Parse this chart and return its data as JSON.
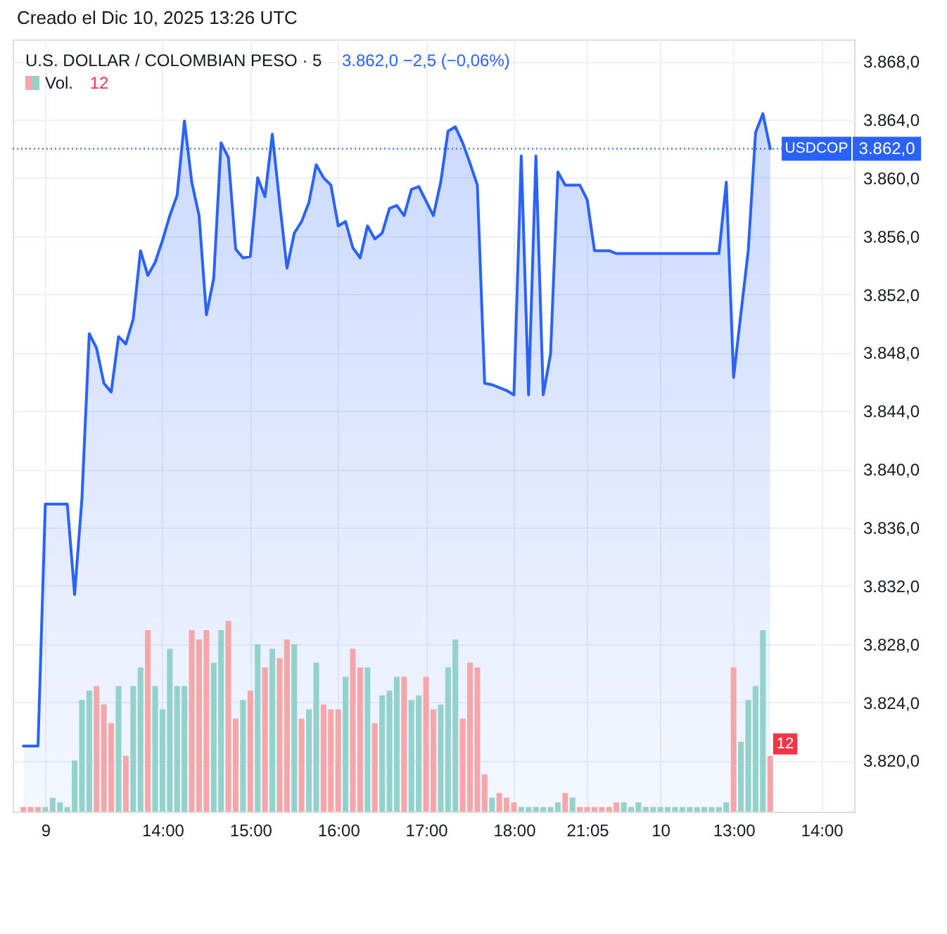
{
  "chart_data": {
    "type": "area",
    "title": "U.S. DOLLAR / COLOMBIAN PESO · 5",
    "subtitle": "3.862,0 −2,5 (−0,06%)",
    "annotations": [
      "Creado el Dic 10, 2025 13:26 UTC"
    ],
    "categories": [
      null,
      null,
      null,
      "9",
      null,
      null,
      null,
      null,
      null,
      null,
      null,
      null,
      null,
      null,
      null,
      null,
      null,
      null,
      null,
      "14:00",
      null,
      null,
      null,
      null,
      null,
      null,
      null,
      null,
      null,
      null,
      null,
      "15:00",
      null,
      null,
      null,
      null,
      null,
      null,
      null,
      null,
      null,
      null,
      null,
      "16:00",
      null,
      null,
      null,
      null,
      null,
      null,
      null,
      null,
      null,
      null,
      null,
      "17:00",
      null,
      null,
      null,
      null,
      null,
      null,
      null,
      null,
      null,
      null,
      null,
      "18:00",
      null,
      null,
      null,
      null,
      null,
      null,
      null,
      null,
      null,
      "21:05",
      null,
      null,
      null,
      null,
      null,
      null,
      null,
      null,
      null,
      "10",
      null,
      null,
      null,
      null,
      null,
      null,
      null,
      null,
      null,
      "13:00",
      null,
      null,
      null,
      null,
      null,
      null,
      null,
      null,
      null,
      null,
      null,
      "14:00",
      null,
      null,
      null
    ],
    "series": [
      {
        "name": "USDCOP",
        "color": "#2962ff",
        "values": [
          3821.0,
          3821.0,
          3821.0,
          3837.6,
          3837.6,
          3837.6,
          3837.6,
          3831.4,
          3838.0,
          3849.3,
          3848.3,
          3845.9,
          3845.3,
          3849.1,
          3848.6,
          3850.3,
          3855.0,
          3853.3,
          3854.2,
          3855.7,
          3857.4,
          3858.8,
          3863.9,
          3859.7,
          3857.4,
          3850.6,
          3853.1,
          3862.4,
          3861.4,
          3855.1,
          3854.5,
          3854.6,
          3860.0,
          3858.7,
          3863.0,
          3858.3,
          3853.8,
          3856.2,
          3857.0,
          3858.3,
          3860.9,
          3860.0,
          3859.5,
          3856.7,
          3857.0,
          3855.2,
          3854.5,
          3856.7,
          3855.8,
          3856.2,
          3857.9,
          3858.1,
          3857.4,
          3859.2,
          3859.4,
          3858.4,
          3857.4,
          3859.7,
          3863.2,
          3863.5,
          3862.4,
          3861.0,
          3859.5,
          3845.9,
          3845.8,
          3845.6,
          3845.4,
          3845.1,
          3861.5,
          3845.1,
          3861.5,
          3845.1,
          3847.9,
          3860.4,
          3859.5,
          3859.5,
          3859.5,
          3858.5,
          3855.0,
          3855.0,
          3855.0,
          3854.8,
          3854.8,
          3854.8,
          3854.8,
          3854.8,
          3854.8,
          3854.8,
          3854.8,
          3854.8,
          3854.8,
          3854.8,
          3854.8,
          3854.8,
          3854.8,
          3854.8,
          3859.7,
          3846.3,
          3850.7,
          3855.0,
          3863.1,
          3864.4,
          3862.0,
          null,
          null,
          null,
          null,
          null,
          null,
          null,
          null,
          null,
          null
        ]
      },
      {
        "name": "Vol.",
        "type": "bar",
        "axis": "y2",
        "values": [
          1,
          1,
          1,
          1,
          3,
          2,
          1,
          11,
          24,
          26,
          27,
          23,
          19,
          27,
          12,
          27,
          31,
          39,
          27,
          22,
          35,
          27,
          27,
          39,
          37,
          39,
          32,
          39,
          41,
          20,
          24,
          26,
          36,
          31,
          35,
          33,
          37,
          36,
          20,
          22,
          32,
          23,
          22,
          22,
          29,
          35,
          31,
          31,
          19,
          25,
          26,
          29,
          29,
          24,
          25,
          29,
          22,
          23,
          31,
          37,
          20,
          32,
          31,
          8,
          3,
          4,
          3,
          2,
          1,
          1,
          1,
          1,
          1,
          2,
          4,
          3,
          1,
          1,
          1,
          1,
          1,
          2,
          2,
          1,
          2,
          1,
          1,
          1,
          1,
          1,
          1,
          1,
          1,
          1,
          1,
          1,
          2,
          31,
          15,
          24,
          27,
          39,
          12,
          null,
          null,
          null,
          null,
          null,
          null,
          null,
          null,
          null,
          null
        ],
        "colors": [
          "#f5a6a8",
          "#f5a6a8",
          "#f5a6a8",
          "#92d2ca",
          "#92d2ca",
          "#92d2ca",
          "#92d2ca",
          "#92d2ca",
          "#92d2ca",
          "#92d2ca",
          "#f5a6a8",
          "#f5a6a8",
          "#f5a6a8",
          "#92d2ca",
          "#f5a6a8",
          "#92d2ca",
          "#92d2ca",
          "#f5a6a8",
          "#92d2ca",
          "#92d2ca",
          "#92d2ca",
          "#92d2ca",
          "#92d2ca",
          "#f5a6a8",
          "#f5a6a8",
          "#f5a6a8",
          "#92d2ca",
          "#92d2ca",
          "#f5a6a8",
          "#f5a6a8",
          "#92d2ca",
          "#f5a6a8",
          "#92d2ca",
          "#f5a6a8",
          "#92d2ca",
          "#f5a6a8",
          "#f5a6a8",
          "#92d2ca",
          "#f5a6a8",
          "#92d2ca",
          "#92d2ca",
          "#f5a6a8",
          "#f5a6a8",
          "#f5a6a8",
          "#92d2ca",
          "#f5a6a8",
          "#f5a6a8",
          "#92d2ca",
          "#f5a6a8",
          "#92d2ca",
          "#92d2ca",
          "#92d2ca",
          "#f5a6a8",
          "#92d2ca",
          "#92d2ca",
          "#f5a6a8",
          "#f5a6a8",
          "#92d2ca",
          "#92d2ca",
          "#92d2ca",
          "#f5a6a8",
          "#f5a6a8",
          "#f5a6a8",
          "#f5a6a8",
          "#92d2ca",
          "#f5a6a8",
          "#f5a6a8",
          "#f5a6a8",
          "#92d2ca",
          "#92d2ca",
          "#92d2ca",
          "#92d2ca",
          "#92d2ca",
          "#92d2ca",
          "#f5a6a8",
          "#92d2ca",
          "#f5a6a8",
          "#f5a6a8",
          "#f5a6a8",
          "#f5a6a8",
          "#f5a6a8",
          "#f5a6a8",
          "#92d2ca",
          "#92d2ca",
          "#92d2ca",
          "#92d2ca",
          "#92d2ca",
          "#92d2ca",
          "#92d2ca",
          "#92d2ca",
          "#92d2ca",
          "#92d2ca",
          "#92d2ca",
          "#92d2ca",
          "#92d2ca",
          "#92d2ca",
          "#92d2ca",
          "#f5a6a8",
          "#92d2ca",
          "#92d2ca",
          "#92d2ca",
          "#92d2ca",
          "#f5a6a8",
          null,
          null,
          null,
          null,
          null,
          null,
          null,
          null,
          null,
          null
        ],
        "value_labels": [
          null,
          null,
          null,
          null,
          null,
          null,
          null,
          null,
          null,
          null,
          null,
          null,
          null,
          null,
          null,
          null,
          null,
          null,
          null,
          null,
          null,
          null,
          null,
          null,
          null,
          null,
          null,
          null,
          null,
          null,
          null,
          null,
          null,
          null,
          null,
          null,
          null,
          null,
          null,
          null,
          null,
          null,
          null,
          null,
          null,
          null,
          null,
          null,
          null,
          null,
          null,
          null,
          null,
          null,
          null,
          null,
          null,
          null,
          null,
          null,
          null,
          null,
          null,
          null,
          null,
          null,
          null,
          null,
          null,
          null,
          null,
          null,
          null,
          null,
          null,
          null,
          null,
          null,
          null,
          null,
          null,
          null,
          null,
          null,
          null,
          null,
          null,
          null,
          null,
          null,
          null,
          null,
          null,
          null,
          null,
          null,
          null,
          null,
          null,
          null,
          null,
          null,
          "12",
          null,
          null,
          null,
          null,
          null,
          null,
          null,
          null,
          null,
          null
        ]
      }
    ],
    "ylim": [
      3816.5,
      3869.5
    ],
    "yticks": [
      {
        "value": 3820,
        "label": "3.820,0"
      },
      {
        "value": 3824,
        "label": "3.824,0"
      },
      {
        "value": 3828,
        "label": "3.828,0"
      },
      {
        "value": 3832,
        "label": "3.832,0"
      },
      {
        "value": 3836,
        "label": "3.836,0"
      },
      {
        "value": 3840,
        "label": "3.840,0"
      },
      {
        "value": 3844,
        "label": "3.844,0"
      },
      {
        "value": 3848,
        "label": "3.848,0"
      },
      {
        "value": 3852,
        "label": "3.852,0"
      },
      {
        "value": 3856,
        "label": "3.856,0"
      },
      {
        "value": 3860,
        "label": "3.860,0"
      },
      {
        "value": 3864,
        "label": "3.864,0"
      },
      {
        "value": 3868,
        "label": "3.868,0"
      }
    ],
    "y2lim": [
      0,
      166
    ],
    "ref_lines": [
      {
        "axis": "y",
        "value": 3862,
        "label": "3.862,0",
        "color": "#2962ff",
        "line_style": "dotted"
      }
    ],
    "grid": true
  }
}
